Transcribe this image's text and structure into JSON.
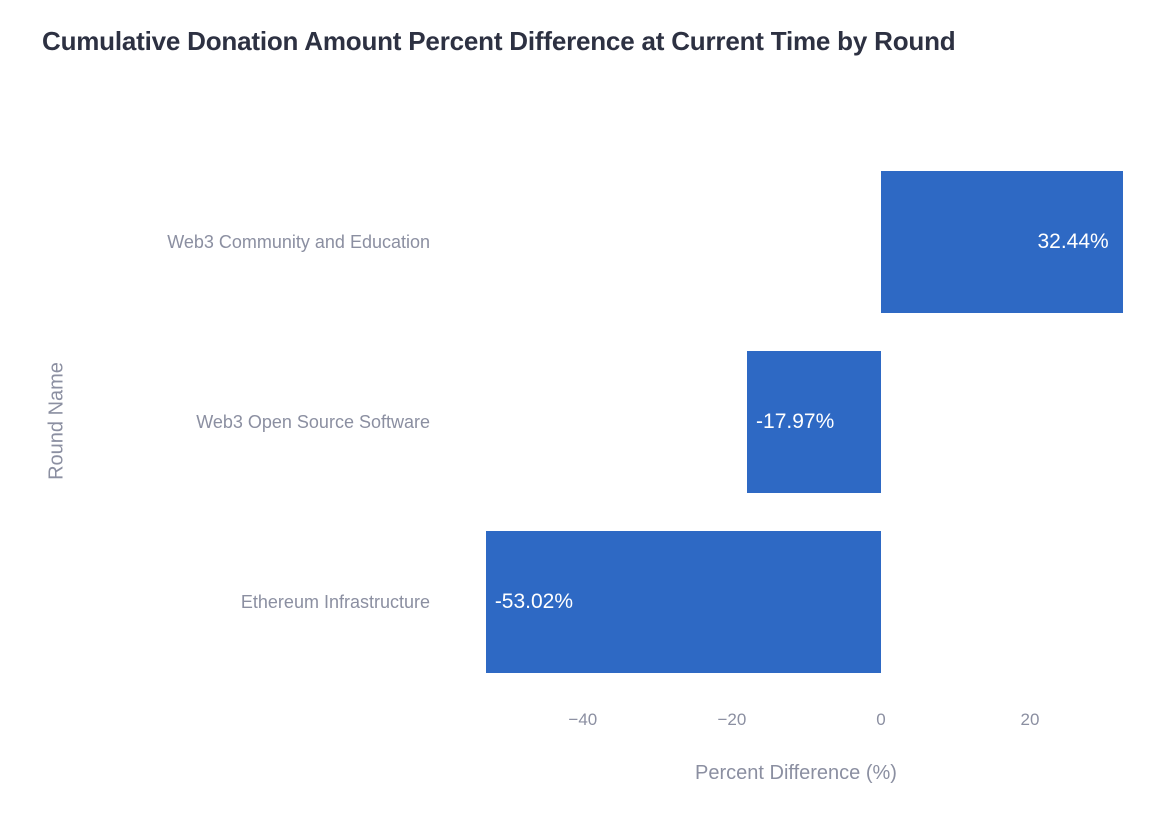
{
  "chart_data": {
    "type": "bar",
    "orientation": "horizontal",
    "title": "Cumulative Donation Amount Percent Difference at Current Time by Round",
    "xlabel": "Percent Difference (%)",
    "ylabel": "Round Name",
    "categories": [
      "Web3 Community and Education",
      "Web3 Open Source Software",
      "Ethereum Infrastructure"
    ],
    "values": [
      32.44,
      -17.97,
      -53.02
    ],
    "bar_labels": [
      "32.44%",
      "-17.97%",
      "-53.02%"
    ],
    "xticks": [
      {
        "value": -40,
        "label": "−40"
      },
      {
        "value": -20,
        "label": "−20"
      },
      {
        "value": 0,
        "label": "0"
      },
      {
        "value": 20,
        "label": "20"
      }
    ],
    "xlim": [
      -58.9,
      36.1
    ],
    "grid": false,
    "legend": false,
    "colors": {
      "bar": "#2e69c4",
      "title": "#2d3142",
      "labels": "#8b8fa1",
      "value_labels": "#ffffff",
      "background": "#ffffff"
    }
  }
}
